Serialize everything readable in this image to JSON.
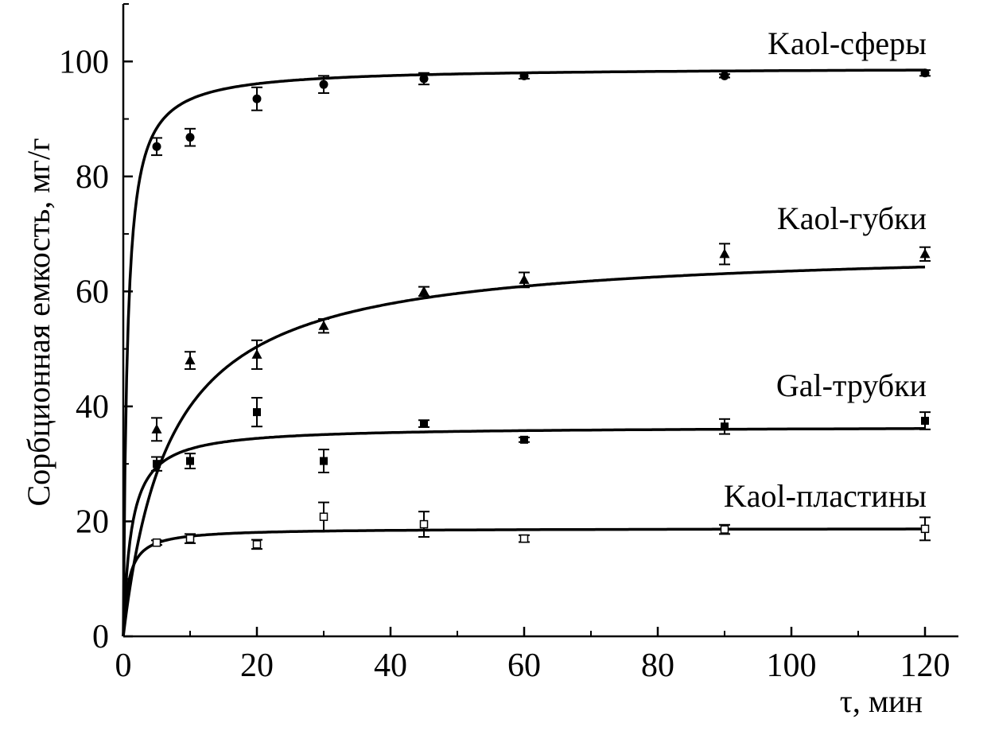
{
  "chart_data": {
    "type": "scatter",
    "title": "",
    "xlabel": "τ, мин",
    "ylabel": "Сорбционная емкость, мг/г",
    "xlim": [
      0,
      125
    ],
    "ylim": [
      0,
      110
    ],
    "xticks": [
      0,
      20,
      40,
      60,
      80,
      100,
      120
    ],
    "yticks": [
      0,
      20,
      40,
      60,
      80,
      100
    ],
    "grid": false,
    "series": [
      {
        "name": "Kaol-сферы",
        "marker": "circle-filled",
        "x": [
          5,
          10,
          20,
          30,
          45,
          60,
          90,
          120
        ],
        "y": [
          85.2,
          86.8,
          93.5,
          96.0,
          97.0,
          97.5,
          97.5,
          98.0
        ],
        "err": [
          1.5,
          1.5,
          2.0,
          1.5,
          1.0,
          0.5,
          0.3,
          0.5
        ],
        "fit": {
          "qe": 99,
          "a": 0.6
        }
      },
      {
        "name": "Kaol-губки",
        "marker": "triangle-filled",
        "x": [
          5,
          10,
          20,
          30,
          45,
          60,
          90,
          120
        ],
        "y": [
          36.0,
          48.0,
          49.0,
          54.0,
          60.0,
          62.0,
          66.5,
          66.5
        ],
        "err": [
          2.0,
          1.5,
          2.5,
          1.2,
          0.8,
          1.3,
          1.8,
          1.2
        ],
        "fit": {
          "qe": 68,
          "a": 7
        }
      },
      {
        "name": "Gal-трубки",
        "marker": "square-filled",
        "x": [
          5,
          10,
          20,
          30,
          45,
          60,
          90,
          120
        ],
        "y": [
          30.0,
          30.5,
          39.0,
          30.5,
          37.0,
          34.2,
          36.5,
          37.5
        ],
        "err": [
          1.2,
          1.3,
          2.5,
          2.0,
          0.6,
          0.4,
          1.3,
          1.5
        ],
        "fit": {
          "qe": 36.5,
          "a": 1.2
        }
      },
      {
        "name": "Kaol-пластины",
        "marker": "square-open",
        "x": [
          5,
          10,
          20,
          30,
          45,
          60,
          90,
          120
        ],
        "y": [
          16.3,
          17.0,
          16.0,
          20.8,
          19.5,
          17.0,
          18.6,
          18.7
        ],
        "err": [
          0.4,
          0.8,
          0.8,
          2.5,
          2.2,
          0.6,
          0.8,
          2.0
        ],
        "fit": {
          "qe": 18.8,
          "a": 0.8
        }
      }
    ]
  }
}
